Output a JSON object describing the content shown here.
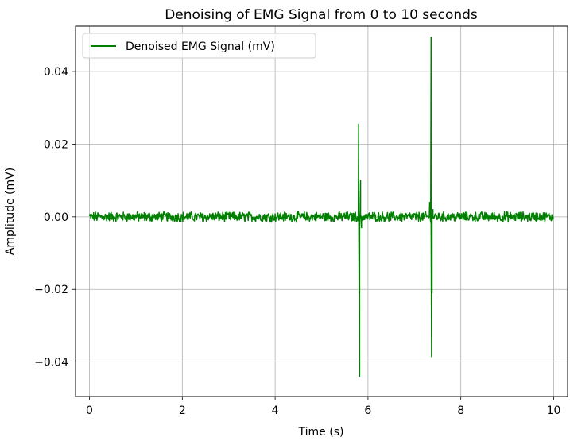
{
  "chart_data": {
    "type": "line",
    "title": "Denoising of EMG Signal from 0 to 10 seconds",
    "xlabel": "Time (s)",
    "ylabel": "Amplitude (mV)",
    "xlim": [
      -0.3,
      10.3
    ],
    "ylim": [
      -0.0495,
      0.0525
    ],
    "xticks": [
      0,
      2,
      4,
      6,
      8,
      10
    ],
    "xtick_labels": [
      "0",
      "2",
      "4",
      "6",
      "8",
      "10"
    ],
    "yticks": [
      -0.04,
      -0.02,
      0.0,
      0.02,
      0.04
    ],
    "ytick_labels": [
      "−0.04",
      "−0.02",
      "0.00",
      "0.02",
      "0.04"
    ],
    "grid": true,
    "legend_position": "top-left",
    "series": [
      {
        "name": "Denoised EMG Signal (mV)",
        "color": "#008000",
        "baseline_noise_amplitude": 0.0012,
        "spikes": [
          {
            "x": 5.8,
            "y": 0.0255
          },
          {
            "x": 5.81,
            "y": -0.021
          },
          {
            "x": 5.82,
            "y": -0.044
          },
          {
            "x": 5.84,
            "y": 0.01
          },
          {
            "x": 5.86,
            "y": -0.003
          },
          {
            "x": 7.33,
            "y": 0.004
          },
          {
            "x": 7.36,
            "y": 0.0495
          },
          {
            "x": 7.37,
            "y": -0.0385
          },
          {
            "x": 7.38,
            "y": -0.021
          },
          {
            "x": 7.4,
            "y": 0.002
          }
        ],
        "x_range": [
          0,
          10
        ]
      }
    ]
  }
}
